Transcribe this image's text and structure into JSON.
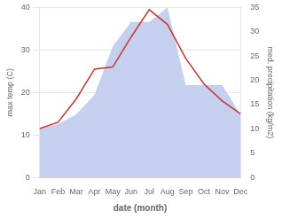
{
  "chart_data": {
    "type": "line",
    "categories": [
      "Jan",
      "Feb",
      "Mar",
      "Apr",
      "May",
      "Jun",
      "Jul",
      "Aug",
      "Sep",
      "Oct",
      "Nov",
      "Dec"
    ],
    "series": [
      {
        "type": "area",
        "color": "#c5d0ee",
        "axis": "y2",
        "values": [
          10.0,
          11.0,
          13.0,
          17.0,
          27.0,
          32.0,
          32.0,
          35.0,
          19.0,
          19.0,
          19.0,
          13.0
        ]
      },
      {
        "type": "line",
        "color": "#cc3333",
        "values": [
          11.5,
          13.0,
          18.5,
          25.5,
          26.0,
          33.0,
          39.5,
          36.0,
          28.0,
          22.0,
          18.0,
          15.0
        ]
      }
    ],
    "xlabel": "date (month)",
    "ylabel": "max temp (C)",
    "y2label": "med. precipitation (kg/m2)",
    "ylim": [
      0,
      40
    ],
    "yticks": [
      0,
      10,
      20,
      30,
      40
    ],
    "y2lim": [
      0,
      35
    ],
    "y2ticks": [
      0,
      5,
      10,
      15,
      20,
      25,
      30,
      35
    ],
    "grid": true
  }
}
